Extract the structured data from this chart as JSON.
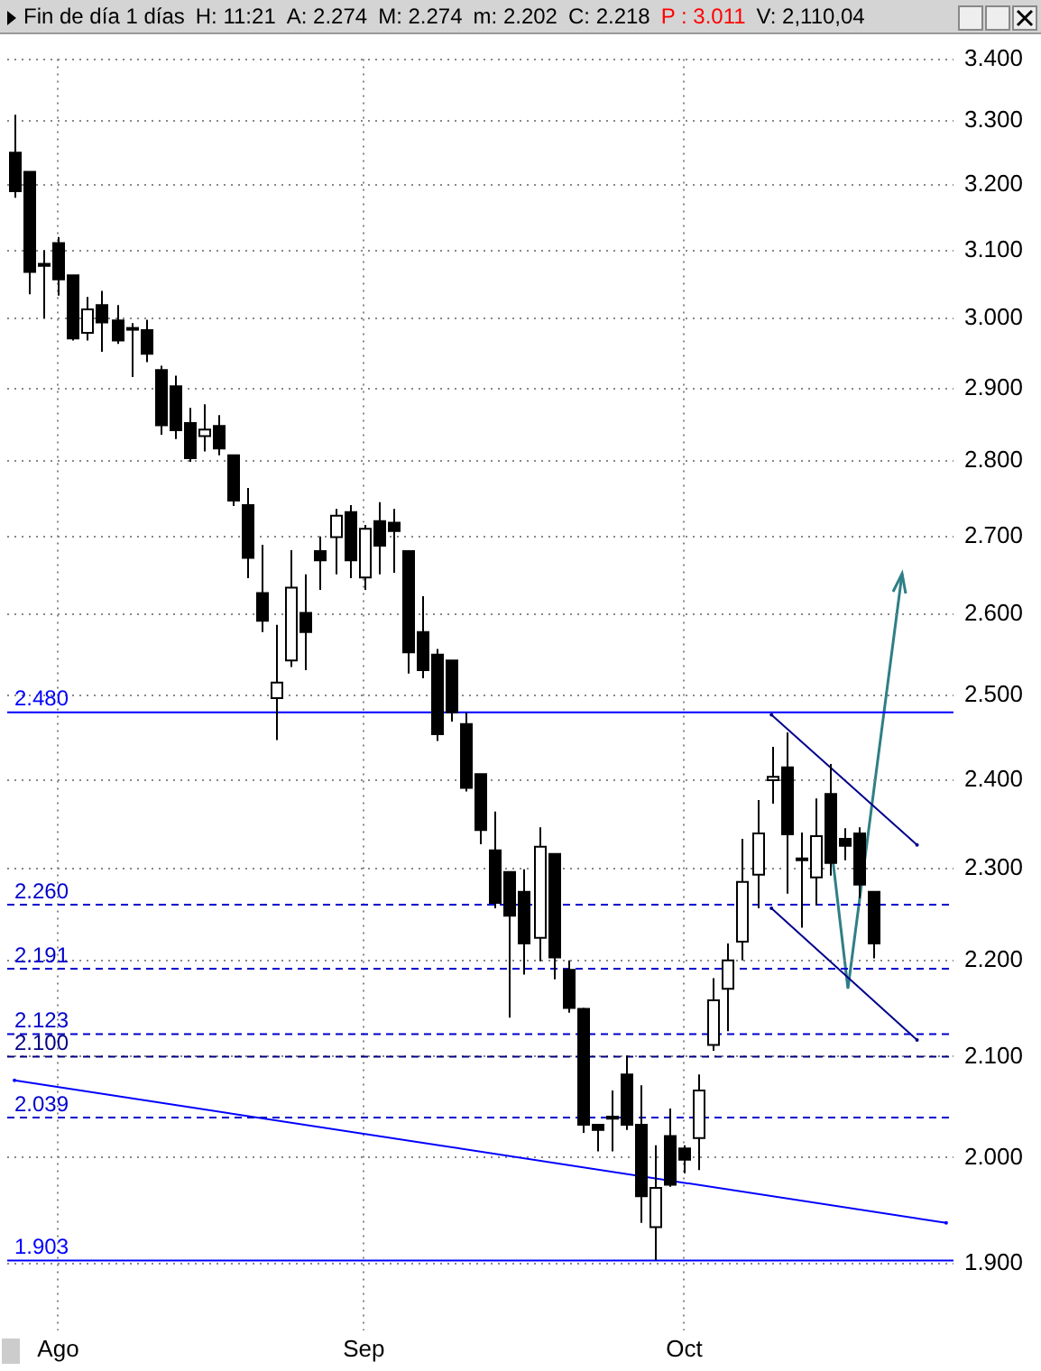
{
  "chart_data": {
    "type": "candlestick",
    "title": "Fin de día 1 días",
    "annotations": [
      "H: 11:21",
      "A: 2.274",
      "M: 2.274",
      "m: 2.202",
      "C: 2.218",
      "P : 3.011",
      "V: 2,110,04"
    ],
    "categories": [
      null,
      null,
      null,
      "Ago",
      null,
      null,
      null,
      null,
      null,
      null,
      null,
      null,
      null,
      null,
      null,
      null,
      null,
      null,
      null,
      null,
      null,
      null,
      null,
      null,
      "Sep",
      null,
      null,
      null,
      null,
      null,
      null,
      null,
      null,
      null,
      null,
      null,
      null,
      null,
      null,
      null,
      null,
      null,
      null,
      null,
      null,
      null,
      "Oct",
      null,
      null,
      null,
      null,
      null,
      null,
      null,
      null,
      null,
      null,
      null,
      null,
      null,
      null,
      null,
      null,
      null,
      null
    ],
    "ohlc": [
      [
        3.25,
        3.31,
        3.18,
        3.19
      ],
      [
        3.22,
        3.22,
        3.035,
        3.068
      ],
      [
        3.08,
        3.1,
        3.0,
        3.077
      ],
      [
        3.111,
        3.12,
        3.033,
        3.057
      ],
      [
        3.063,
        3.063,
        2.968,
        2.971
      ],
      [
        2.979,
        3.031,
        2.968,
        3.013
      ],
      [
        3.019,
        3.04,
        2.952,
        2.994
      ],
      [
        2.997,
        3.019,
        2.963,
        2.968
      ],
      [
        2.986,
        2.993,
        2.916,
        2.984
      ],
      [
        2.983,
        2.998,
        2.937,
        2.949
      ],
      [
        2.926,
        2.932,
        2.836,
        2.849
      ],
      [
        2.903,
        2.918,
        2.83,
        2.842
      ],
      [
        2.852,
        2.873,
        2.799,
        2.804
      ],
      [
        2.834,
        2.878,
        2.813,
        2.843
      ],
      [
        2.848,
        2.863,
        2.808,
        2.817
      ],
      [
        2.808,
        2.808,
        2.74,
        2.747
      ],
      [
        2.741,
        2.764,
        2.646,
        2.672
      ],
      [
        2.627,
        2.689,
        2.578,
        2.592
      ],
      [
        2.497,
        2.587,
        2.447,
        2.516
      ],
      [
        2.543,
        2.682,
        2.535,
        2.634
      ],
      [
        2.602,
        2.651,
        2.531,
        2.578
      ],
      [
        2.681,
        2.7,
        2.631,
        2.669
      ],
      [
        2.699,
        2.736,
        2.651,
        2.727
      ],
      [
        2.732,
        2.741,
        2.646,
        2.669
      ],
      [
        2.647,
        2.715,
        2.631,
        2.71
      ],
      [
        2.72,
        2.745,
        2.651,
        2.688
      ],
      [
        2.718,
        2.736,
        2.653,
        2.707
      ],
      [
        2.681,
        2.681,
        2.527,
        2.553
      ],
      [
        2.578,
        2.623,
        2.521,
        2.531
      ],
      [
        2.55,
        2.557,
        2.446,
        2.454
      ],
      [
        2.543,
        2.543,
        2.469,
        2.48
      ],
      [
        2.466,
        2.48,
        2.387,
        2.391
      ],
      [
        2.407,
        2.407,
        2.327,
        2.343
      ],
      [
        2.32,
        2.364,
        2.256,
        2.262
      ],
      [
        2.296,
        2.296,
        2.14,
        2.248
      ],
      [
        2.274,
        2.299,
        2.185,
        2.218
      ],
      [
        2.224,
        2.346,
        2.199,
        2.324
      ],
      [
        2.316,
        2.316,
        2.18,
        2.203
      ],
      [
        2.19,
        2.2,
        2.145,
        2.15
      ],
      [
        2.149,
        2.15,
        2.024,
        2.032
      ],
      [
        2.032,
        2.032,
        2.006,
        2.027
      ],
      [
        2.04,
        2.066,
        2.006,
        2.038
      ],
      [
        2.082,
        2.101,
        2.027,
        2.032
      ],
      [
        2.032,
        2.071,
        1.938,
        1.963
      ],
      [
        1.934,
        2.012,
        1.903,
        1.971
      ],
      [
        2.021,
        2.048,
        1.972,
        1.974
      ],
      [
        2.009,
        2.012,
        1.985,
        1.998
      ],
      [
        2.019,
        2.082,
        1.988,
        2.066
      ],
      [
        2.112,
        2.181,
        2.106,
        2.158
      ],
      [
        2.17,
        2.218,
        2.126,
        2.2
      ],
      [
        2.22,
        2.333,
        2.2,
        2.285
      ],
      [
        2.293,
        2.377,
        2.256,
        2.339
      ],
      [
        2.4,
        2.439,
        2.373,
        2.404
      ],
      [
        2.415,
        2.456,
        2.272,
        2.338
      ],
      [
        2.311,
        2.34,
        2.235,
        2.309
      ],
      [
        2.29,
        2.379,
        2.259,
        2.336
      ],
      [
        2.384,
        2.419,
        2.292,
        2.306
      ],
      [
        2.333,
        2.345,
        2.309,
        2.325
      ],
      [
        2.339,
        2.346,
        2.267,
        2.282
      ],
      [
        2.274,
        2.274,
        2.202,
        2.218
      ],
      null,
      null,
      null,
      null,
      null
    ],
    "color": "#000000",
    "series": [
      {
        "type": "line",
        "color": "#0000ff",
        "values": [
          2.076,
          null,
          null,
          null,
          null,
          null,
          null,
          null,
          null,
          null,
          null,
          null,
          null,
          null,
          null,
          null,
          null,
          null,
          null,
          null,
          null,
          null,
          null,
          null,
          null,
          null,
          null,
          null,
          null,
          null,
          null,
          null,
          null,
          null,
          null,
          null,
          null,
          null,
          null,
          null,
          null,
          null,
          null,
          null,
          null,
          null,
          null,
          null,
          null,
          null,
          null,
          null,
          null,
          null,
          null,
          null,
          null,
          null,
          null,
          null,
          null,
          null,
          null,
          null,
          1.938
        ]
      },
      {
        "type": "line",
        "color": "#00008b",
        "values": [
          null,
          null,
          null,
          null,
          null,
          null,
          null,
          null,
          null,
          null,
          null,
          null,
          null,
          null,
          null,
          null,
          null,
          null,
          null,
          null,
          null,
          null,
          null,
          null,
          null,
          null,
          null,
          null,
          null,
          null,
          null,
          null,
          null,
          null,
          null,
          null,
          null,
          null,
          null,
          null,
          null,
          null,
          null,
          null,
          null,
          null,
          null,
          null,
          null,
          null,
          null,
          null,
          2.477,
          null,
          null,
          null,
          null,
          null,
          null,
          null,
          null,
          null,
          2.326,
          null,
          null
        ]
      },
      {
        "type": "line",
        "color": "#00008b",
        "values": [
          null,
          null,
          null,
          null,
          null,
          null,
          null,
          null,
          null,
          null,
          null,
          null,
          null,
          null,
          null,
          null,
          null,
          null,
          null,
          null,
          null,
          null,
          null,
          null,
          null,
          null,
          null,
          null,
          null,
          null,
          null,
          null,
          null,
          null,
          null,
          null,
          null,
          null,
          null,
          null,
          null,
          null,
          null,
          null,
          null,
          null,
          null,
          null,
          null,
          null,
          null,
          null,
          2.256,
          null,
          null,
          null,
          null,
          null,
          null,
          null,
          null,
          null,
          2.117,
          null,
          null
        ]
      }
    ],
    "ref_lines": [
      {
        "axis": "y",
        "value": 2.48,
        "label": "2.480",
        "color": "#0000ff",
        "line_style": "solid"
      },
      {
        "axis": "y",
        "value": 2.26,
        "label": "2.260",
        "color": "#0000cc",
        "line_style": "dashed"
      },
      {
        "axis": "y",
        "value": 2.191,
        "label": "2.191",
        "color": "#0000cc",
        "line_style": "dashed"
      },
      {
        "axis": "y",
        "value": 2.123,
        "label": "2.123",
        "color": "#0000cc",
        "line_style": "dashed"
      },
      {
        "axis": "y",
        "value": 2.1,
        "label": "2.100",
        "color": "#000080",
        "line_style": "dashed"
      },
      {
        "axis": "y",
        "value": 2.039,
        "label": "2.039",
        "color": "#0000cc",
        "line_style": "dashed"
      },
      {
        "axis": "y",
        "value": 1.903,
        "label": "1.903",
        "color": "#0000ff",
        "line_style": "solid"
      }
    ],
    "log": "y",
    "grid": true,
    "legend": false,
    "ylim": [
      1.84,
      3.4
    ],
    "yticks": [
      {
        "value": 1.9,
        "label": "1.900"
      },
      {
        "value": 2.0,
        "label": "2.000"
      },
      {
        "value": 2.1,
        "label": "2.100"
      },
      {
        "value": 2.2,
        "label": "2.200"
      },
      {
        "value": 2.3,
        "label": "2.300"
      },
      {
        "value": 2.4,
        "label": "2.400"
      },
      {
        "value": 2.5,
        "label": "2.500"
      },
      {
        "value": 2.6,
        "label": "2.600"
      },
      {
        "value": 2.7,
        "label": "2.700"
      },
      {
        "value": 2.8,
        "label": "2.800"
      },
      {
        "value": 2.9,
        "label": "2.900"
      },
      {
        "value": 3.0,
        "label": "3.000"
      },
      {
        "value": 3.1,
        "label": "3.100"
      },
      {
        "value": 3.2,
        "label": "3.200"
      },
      {
        "value": 3.3,
        "label": "3.300"
      },
      {
        "value": 3.4,
        "label": "3.400"
      }
    ]
  }
}
